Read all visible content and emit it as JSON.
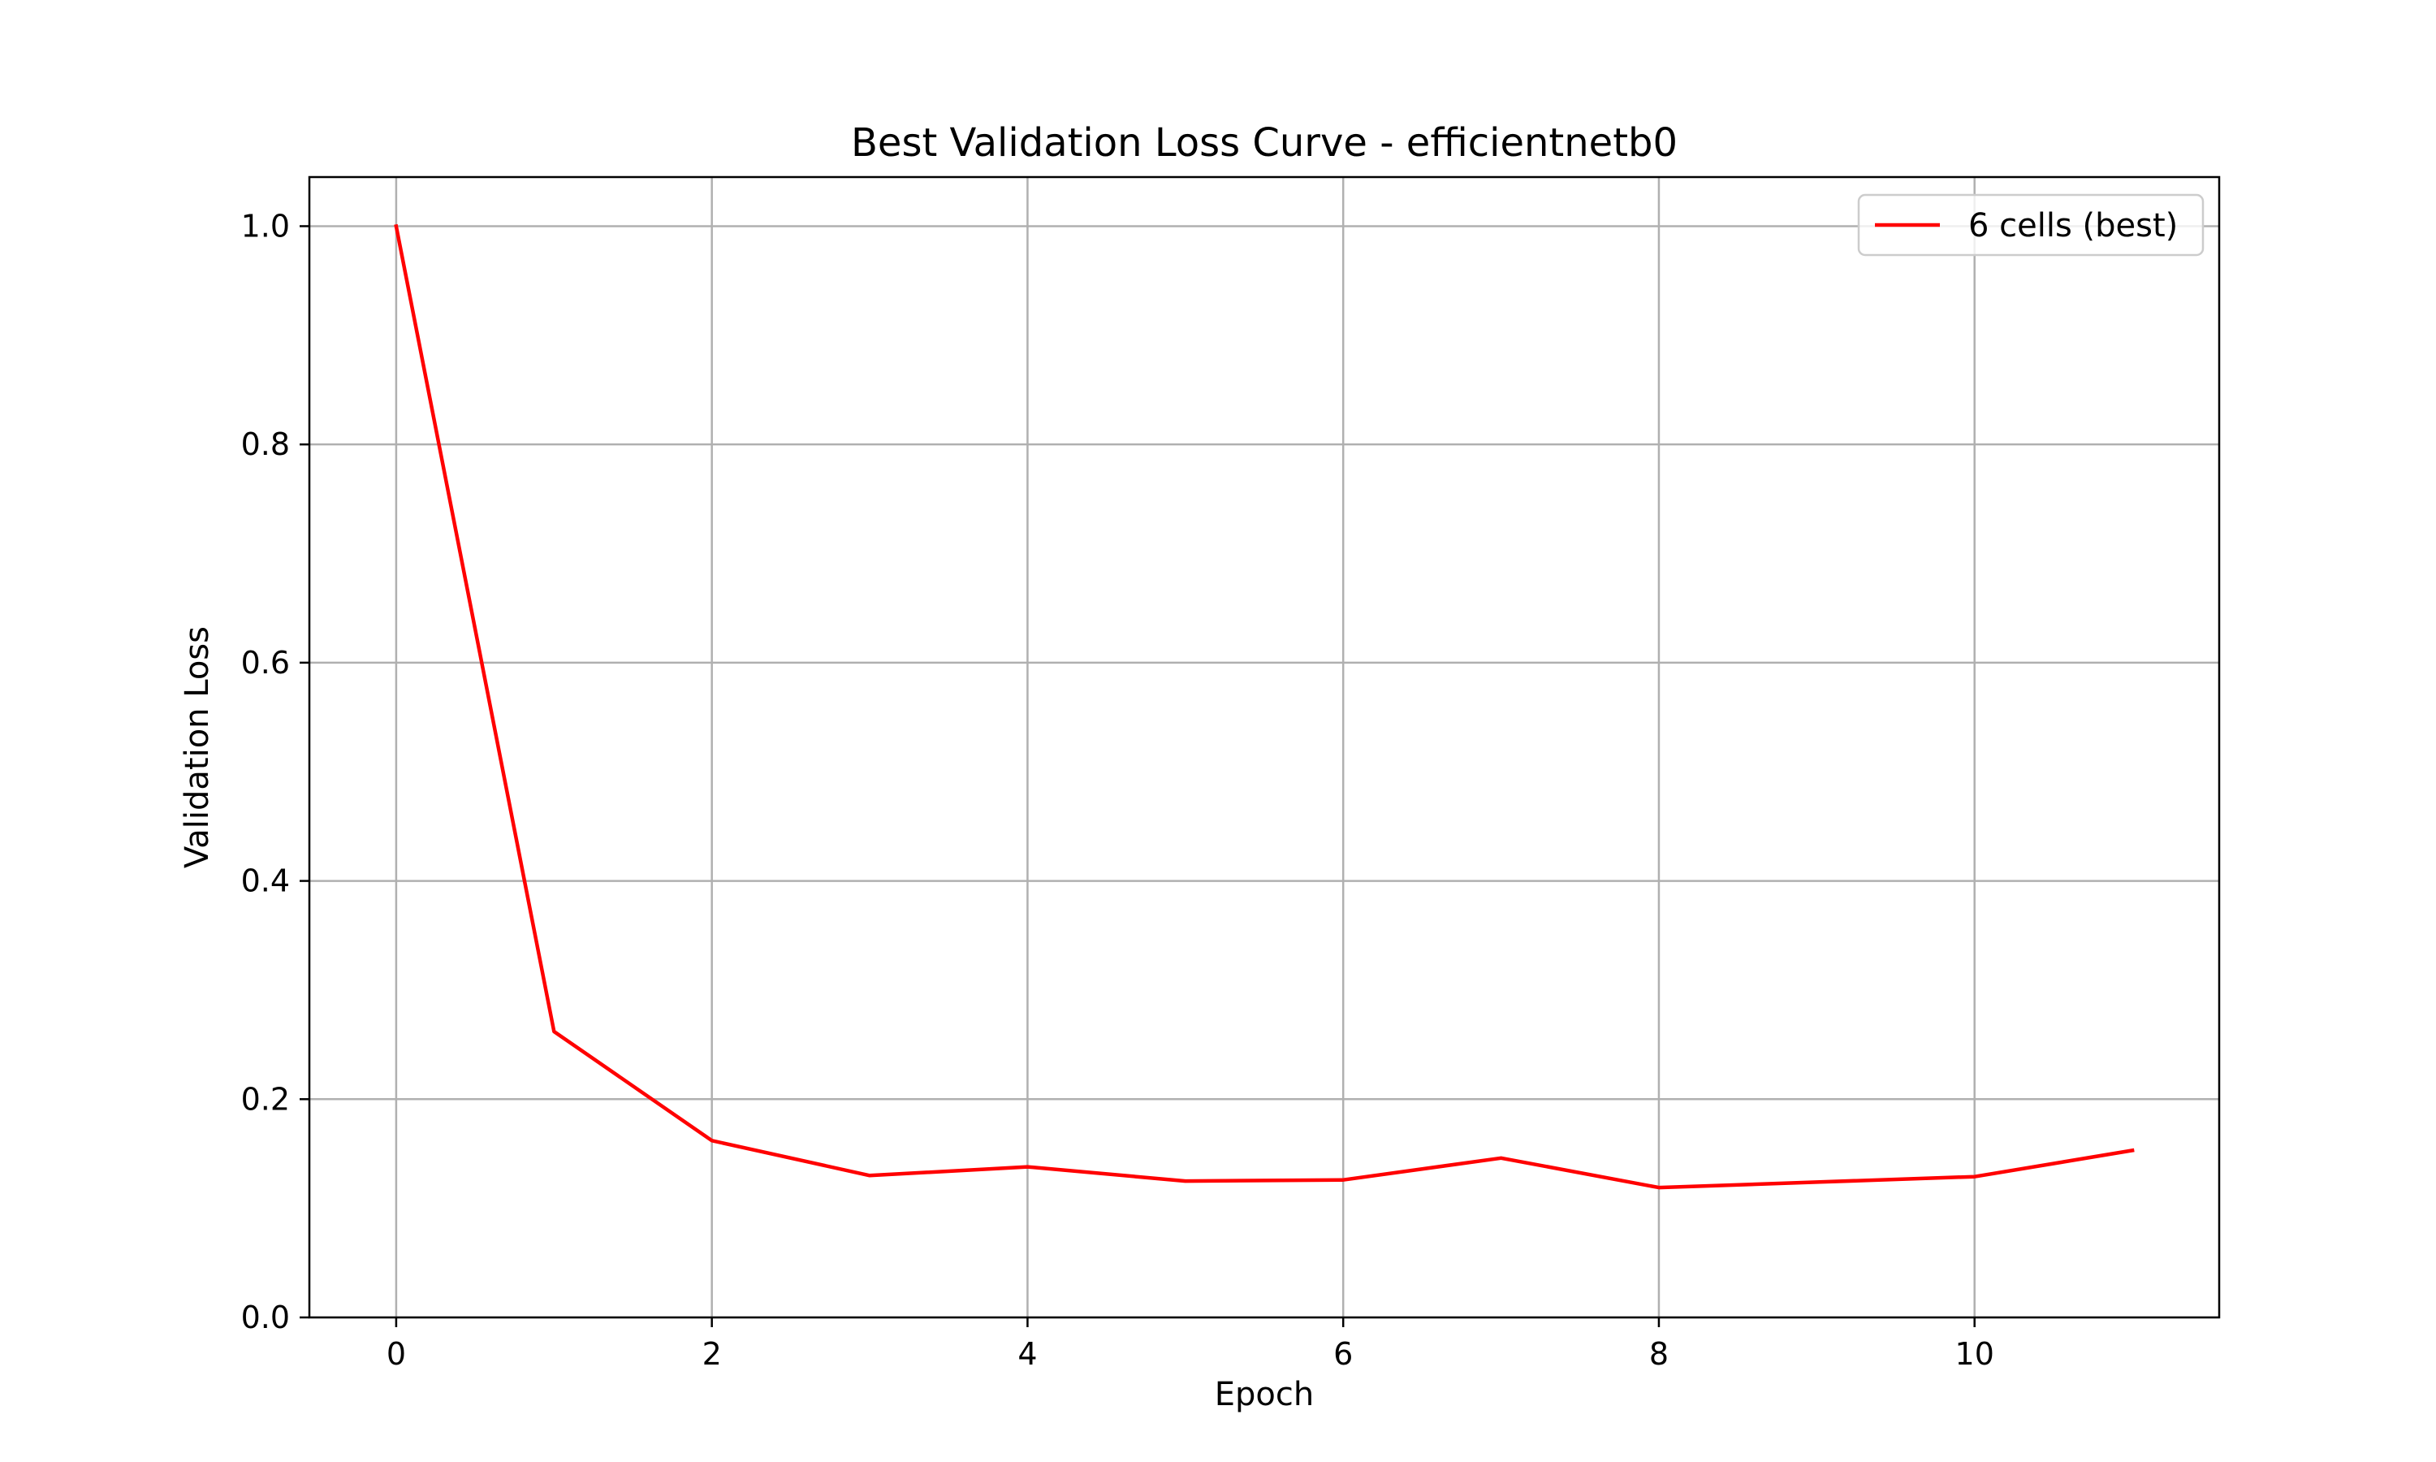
{
  "chart_data": {
    "type": "line",
    "title": "Best Validation Loss Curve - efficientnetb0",
    "xlabel": "Epoch",
    "ylabel": "Validation Loss",
    "xlim": [
      -0.55,
      11.55
    ],
    "ylim": [
      0.0,
      1.045
    ],
    "xticks": [
      0,
      2,
      4,
      6,
      8,
      10
    ],
    "xtick_labels": [
      "0",
      "2",
      "4",
      "6",
      "8",
      "10"
    ],
    "yticks": [
      0.0,
      0.2,
      0.4,
      0.6,
      0.8,
      1.0
    ],
    "ytick_labels": [
      "0.0",
      "0.2",
      "0.4",
      "0.6",
      "0.8",
      "1.0"
    ],
    "grid": true,
    "legend_position": "top-right",
    "series": [
      {
        "name": "6 cells (best)",
        "color": "#ff0000",
        "x": [
          0,
          1,
          2,
          3,
          4,
          5,
          6,
          7,
          8,
          9,
          10,
          11
        ],
        "y": [
          1.0,
          0.262,
          0.162,
          0.13,
          0.138,
          0.125,
          0.126,
          0.146,
          0.119,
          0.124,
          0.129,
          0.153
        ]
      }
    ]
  }
}
